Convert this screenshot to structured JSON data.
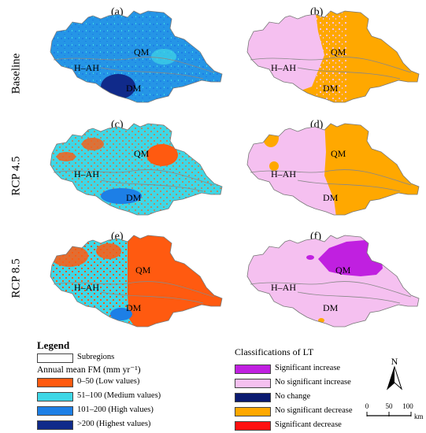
{
  "rows": [
    {
      "label": "Baseline"
    },
    {
      "label": "RCP 4.5"
    },
    {
      "label": "RCP 8.5"
    }
  ],
  "panels": [
    {
      "label": "(a)",
      "kind": "fm"
    },
    {
      "label": "(b)",
      "kind": "lt"
    },
    {
      "label": "(c)",
      "kind": "fm"
    },
    {
      "label": "(d)",
      "kind": "lt"
    },
    {
      "label": "(e)",
      "kind": "fm"
    },
    {
      "label": "(f)",
      "kind": "lt"
    }
  ],
  "regions": {
    "qm": "QM",
    "hah": "H–AH",
    "dm": "DM"
  },
  "legend": {
    "title": "Legend",
    "subregions": "Subregions",
    "fm_title": "Annual mean FM (mm yr⁻¹)",
    "fm_items": [
      {
        "label": "0–50 (Low values)",
        "color": "#ff5a10"
      },
      {
        "label": "51–100 (Medium values)",
        "color": "#3ed7e6"
      },
      {
        "label": "101–200 (High values)",
        "color": "#1d7fe6"
      },
      {
        "label": ">200 (Highest values)",
        "color": "#102a8a"
      }
    ]
  },
  "lt_legend": {
    "title": "Classifications of LT",
    "items": [
      {
        "label": "Significant increase",
        "color": "#c020e0"
      },
      {
        "label": "No significant increase",
        "color": "#f5c0f0"
      },
      {
        "label": "No change",
        "color": "#0a1a70"
      },
      {
        "label": "No significant decrease",
        "color": "#ffa800"
      },
      {
        "label": "Significant decrease",
        "color": "#ff1010"
      }
    ]
  },
  "north": "N",
  "scale": {
    "ticks": [
      "0",
      "50",
      "100"
    ],
    "unit": "km"
  }
}
